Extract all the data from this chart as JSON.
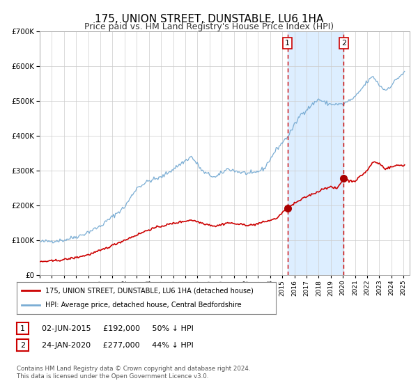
{
  "title": "175, UNION STREET, DUNSTABLE, LU6 1HA",
  "subtitle": "Price paid vs. HM Land Registry's House Price Index (HPI)",
  "ylim": [
    0,
    700000
  ],
  "yticks": [
    0,
    100000,
    200000,
    300000,
    400000,
    500000,
    600000,
    700000
  ],
  "ytick_labels": [
    "£0",
    "£100K",
    "£200K",
    "£300K",
    "£400K",
    "£500K",
    "£600K",
    "£700K"
  ],
  "hpi_color": "#7aadd4",
  "price_color": "#cc0000",
  "marker_color": "#aa0000",
  "sale1_date_num": 2015.42,
  "sale2_date_num": 2020.07,
  "sale1_price": 192000,
  "sale2_price": 277000,
  "shade_color": "#ddeeff",
  "vline_color": "#cc0000",
  "legend1": "175, UNION STREET, DUNSTABLE, LU6 1HA (detached house)",
  "legend2": "HPI: Average price, detached house, Central Bedfordshire",
  "note1_text": "02-JUN-2015     £192,000     50% ↓ HPI",
  "note2_text": "24-JAN-2020     £277,000     44% ↓ HPI",
  "footer": "Contains HM Land Registry data © Crown copyright and database right 2024.\nThis data is licensed under the Open Government Licence v3.0.",
  "title_fontsize": 11,
  "subtitle_fontsize": 9,
  "background_color": "#ffffff",
  "grid_color": "#cccccc"
}
